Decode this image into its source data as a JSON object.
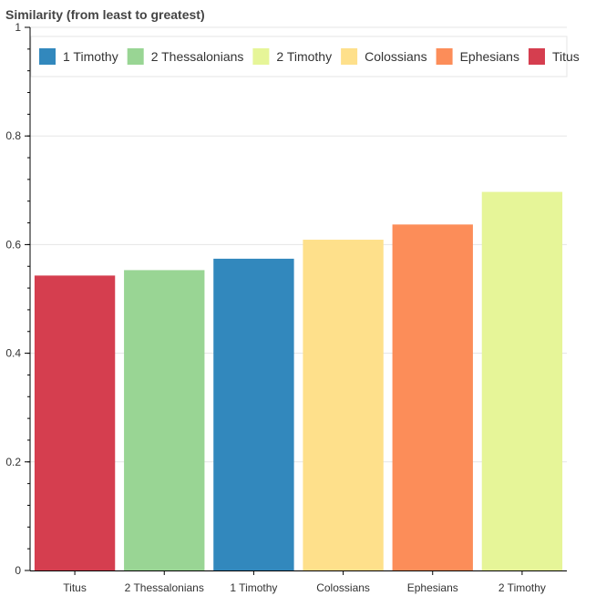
{
  "chart_data": {
    "type": "bar",
    "title": "Similarity (from least to greatest)",
    "categories": [
      "Titus",
      "2 Thessalonians",
      "1 Timothy",
      "Colossians",
      "Ephesians",
      "2 Timothy"
    ],
    "values": [
      0.543,
      0.553,
      0.574,
      0.609,
      0.637,
      0.697
    ],
    "colors": [
      "#d53e4f",
      "#99d594",
      "#3288bd",
      "#fee08b",
      "#fc8d59",
      "#e6f598"
    ],
    "ylim": [
      0,
      1
    ],
    "yticks": [
      "0",
      "0.2",
      "0.4",
      "0.6",
      "0.8",
      "1"
    ],
    "ytick_values": [
      0,
      0.2,
      0.4,
      0.6,
      0.8,
      1
    ],
    "grid": true,
    "legend": {
      "placement": "top",
      "items": [
        {
          "label": "1 Timothy",
          "color": "#3288bd"
        },
        {
          "label": "2 Thessalonians",
          "color": "#99d594"
        },
        {
          "label": "2 Timothy",
          "color": "#e6f598"
        },
        {
          "label": "Colossians",
          "color": "#fee08b"
        },
        {
          "label": "Ephesians",
          "color": "#fc8d59"
        },
        {
          "label": "Titus",
          "color": "#d53e4f"
        }
      ]
    }
  }
}
